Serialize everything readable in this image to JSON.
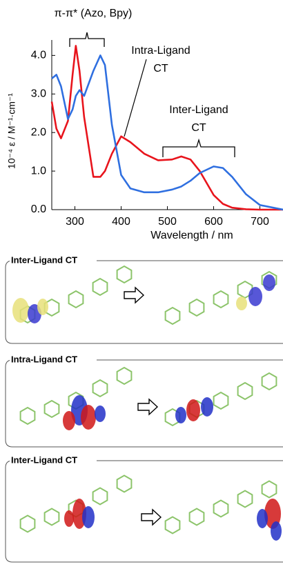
{
  "chart_data": {
    "type": "line",
    "y_label": "10⁻⁴ ε / M⁻¹·cm⁻¹",
    "x_label": "Wavelength / nm",
    "annotations": [
      [
        "π-π* (Azo, Bpy)"
      ],
      [
        "Intra-Ligand",
        "CT"
      ],
      [
        "Inter-Ligand",
        "CT"
      ]
    ],
    "x": [
      250,
      260,
      270,
      285,
      295,
      302,
      310,
      320,
      340,
      355,
      365,
      380,
      400,
      420,
      450,
      480,
      510,
      530,
      550,
      570,
      600,
      620,
      640,
      670,
      700,
      750
    ],
    "series": [
      {
        "color": "#e8141c",
        "values": [
          2.8,
          2.1,
          1.85,
          2.3,
          3.5,
          4.25,
          3.6,
          2.4,
          0.85,
          0.85,
          1.0,
          1.45,
          1.9,
          1.75,
          1.45,
          1.28,
          1.3,
          1.38,
          1.3,
          1.0,
          0.38,
          0.15,
          0.05,
          0.01,
          0.0,
          0.0
        ]
      },
      {
        "color": "#2f6fe0",
        "values": [
          3.4,
          3.5,
          3.2,
          2.35,
          2.6,
          2.95,
          3.1,
          2.95,
          3.6,
          4.0,
          3.75,
          2.2,
          0.9,
          0.55,
          0.45,
          0.45,
          0.52,
          0.6,
          0.75,
          0.95,
          1.12,
          1.08,
          0.85,
          0.4,
          0.12,
          0.0
        ]
      }
    ],
    "xlim": [
      250,
      750
    ],
    "xticks": [
      300,
      400,
      500,
      600,
      700
    ],
    "ylim": [
      0,
      4.4
    ],
    "yticks": [
      {
        "value": 0,
        "label": "0.0"
      },
      {
        "value": 1,
        "label": "1.0"
      },
      {
        "value": 2,
        "label": "2.0"
      },
      {
        "value": 3,
        "label": "3.0"
      },
      {
        "value": 4,
        "label": "4.0"
      }
    ]
  },
  "panels": [
    {
      "title": "Inter-Ligand CT"
    },
    {
      "title": "Intra-Ligand CT"
    },
    {
      "title": "Inter-Ligand CT"
    }
  ]
}
